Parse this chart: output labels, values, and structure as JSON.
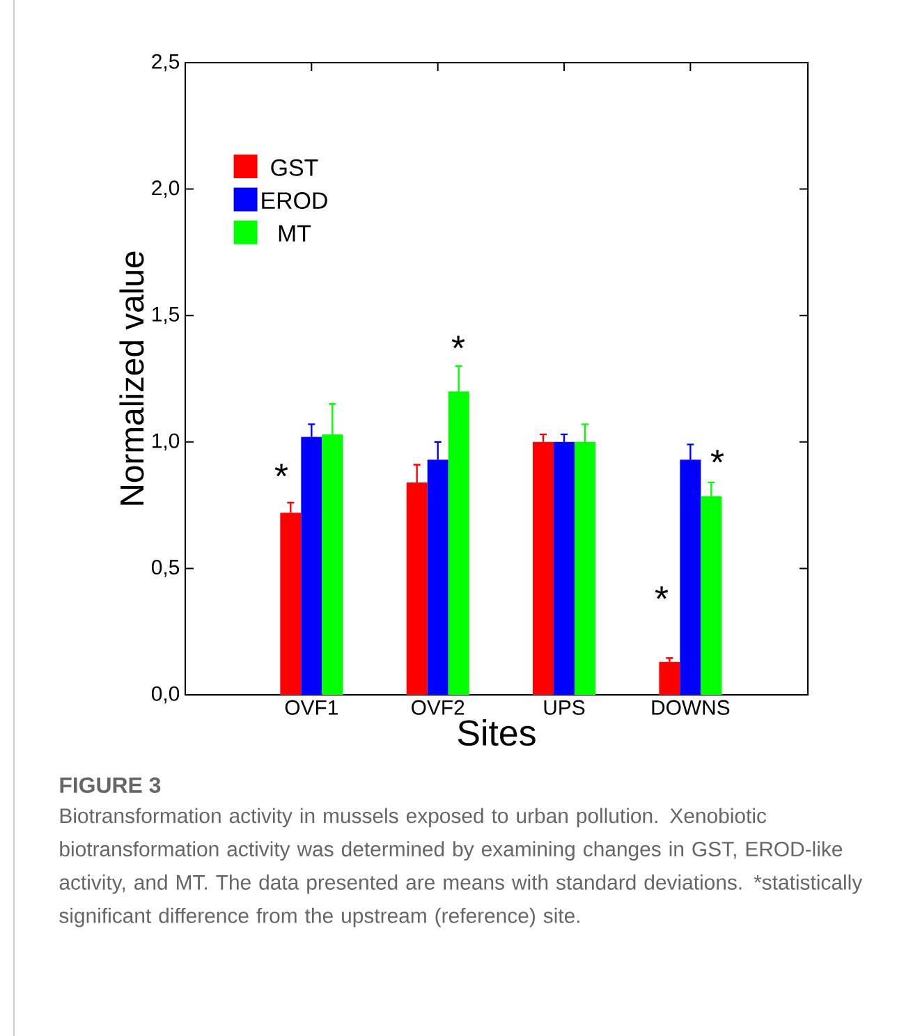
{
  "chart_data": {
    "type": "bar",
    "xlabel": "Sites",
    "ylabel": "Normalized value",
    "categories": [
      "OVF1",
      "OVF2",
      "UPS",
      "DOWNS"
    ],
    "series": [
      {
        "name": "GST",
        "color": "#ff0000",
        "values": [
          0.72,
          0.84,
          1.0,
          0.13
        ],
        "errors": [
          0.04,
          0.07,
          0.03,
          0.015
        ]
      },
      {
        "name": "EROD",
        "color": "#0000ff",
        "values": [
          1.02,
          0.93,
          1.0,
          0.93
        ],
        "errors": [
          0.05,
          0.07,
          0.03,
          0.06
        ]
      },
      {
        "name": "MT",
        "color": "#00ff00",
        "values": [
          1.03,
          1.2,
          1.0,
          0.785
        ],
        "errors": [
          0.12,
          0.1,
          0.07,
          0.055
        ]
      }
    ],
    "ylim": [
      0,
      2.5
    ],
    "yticks": [
      {
        "value": 0,
        "label": "0,0"
      },
      {
        "value": 0.5,
        "label": "0,5"
      },
      {
        "value": 1,
        "label": "1,0"
      },
      {
        "value": 1.5,
        "label": "1,5"
      },
      {
        "value": 2,
        "label": "2,0"
      },
      {
        "value": 2.5,
        "label": "2,5"
      }
    ],
    "legend": "top left",
    "grid": false,
    "annotations": [
      "*",
      "*",
      "*",
      "*",
      "FIGURE 3",
      "Biotransformation activity in mussels exposed to urban pollution. Xenobiotic biotransformation activity was determined by examining changes in GST, EROD-like activity, and MT. The data presented are means with standard deviations. *statistically significant difference from the upstream (reference) site."
    ]
  }
}
